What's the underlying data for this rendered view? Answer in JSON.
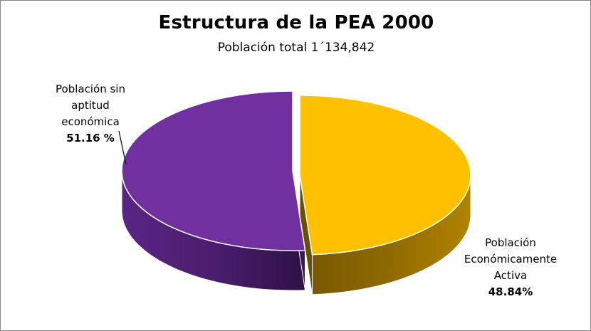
{
  "chart_data": {
    "type": "pie",
    "style": "3d-exploded",
    "title": "Estructura de la PEA 2000",
    "subtitle": "Población total 1´134,842",
    "slices": [
      {
        "label": "Población sin aptitud económica",
        "value": 51.16,
        "value_label": "51.16 %",
        "color": "#7030A0"
      },
      {
        "label": "Población Económicamente Activa",
        "value": 48.84,
        "value_label": "48.84%",
        "color": "#FFC000"
      }
    ],
    "legend": "none",
    "grid": false
  }
}
